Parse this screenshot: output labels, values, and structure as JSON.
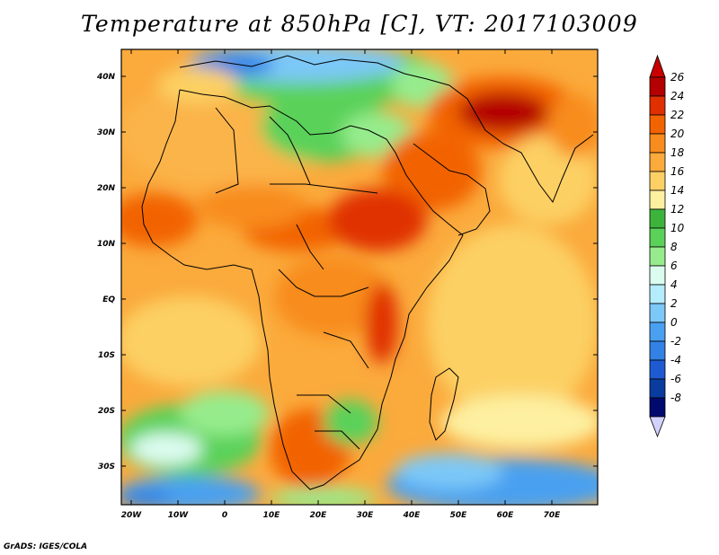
{
  "title": "Temperature at 850hPa [C], VT: 2017103009",
  "credit": "GrADS: IGES/COLA",
  "map": {
    "lat_labels": [
      "40N",
      "30N",
      "20N",
      "10N",
      "EQ",
      "10S",
      "20S",
      "30S"
    ],
    "lon_labels": [
      "20W",
      "10W",
      "0",
      "10E",
      "20E",
      "30E",
      "40E",
      "50E",
      "60E",
      "70E"
    ]
  },
  "colorbar": {
    "labels": [
      "26",
      "24",
      "22",
      "20",
      "18",
      "16",
      "14",
      "12",
      "10",
      "8",
      "6",
      "4",
      "2",
      "0",
      "-2",
      "-4",
      "-6",
      "-8"
    ],
    "colors": [
      "#b40000",
      "#e03000",
      "#f26400",
      "#f88c1e",
      "#fbaa3c",
      "#fcd064",
      "#fdf0a0",
      "#3cb43c",
      "#5ad25a",
      "#96ec8c",
      "#dcfcf0",
      "#b4ecfc",
      "#7cc8f8",
      "#4aa0f0",
      "#3282e6",
      "#1e5ad2",
      "#0a3ca0",
      "#000a6e"
    ],
    "over_color": "#c80000",
    "under_color": "#d2d2ff"
  }
}
